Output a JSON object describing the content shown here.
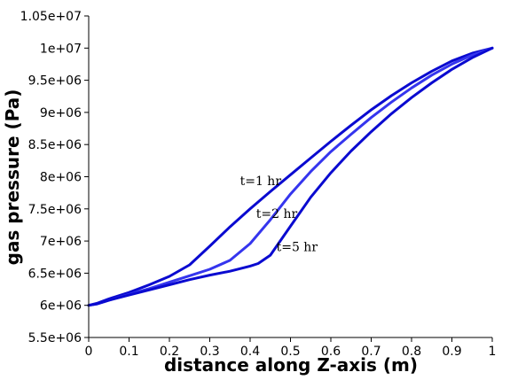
{
  "chart_data": {
    "type": "line",
    "xlabel": "distance along Z-axis (m)",
    "ylabel": "gas pressure (Pa)",
    "xlim": [
      0,
      1
    ],
    "ylim": [
      5500000,
      10500000
    ],
    "x_ticks": [
      "0",
      "0.1",
      "0.2",
      "0.3",
      "0.4",
      "0.5",
      "0.6",
      "0.7",
      "0.8",
      "0.9",
      "1"
    ],
    "y_ticks": [
      "5.5e+06",
      "6e+06",
      "6.5e+06",
      "7e+06",
      "7.5e+06",
      "8e+06",
      "8.5e+06",
      "9e+06",
      "9.5e+06",
      "1e+07",
      "1.05e+07"
    ],
    "grid": false,
    "series": [
      {
        "color": "#0a0ad0",
        "x": [
          0,
          0.02,
          0.05,
          0.1,
          0.15,
          0.2,
          0.25,
          0.3,
          0.35,
          0.4,
          0.45,
          0.5,
          0.55,
          0.6,
          0.65,
          0.7,
          0.75,
          0.8,
          0.85,
          0.9,
          0.95,
          1.0
        ],
        "y": [
          6000000,
          6030000,
          6100000,
          6200000,
          6320000,
          6450000,
          6630000,
          6920000,
          7220000,
          7500000,
          7770000,
          8030000,
          8290000,
          8550000,
          8800000,
          9040000,
          9260000,
          9460000,
          9640000,
          9800000,
          9920000,
          10000000
        ]
      },
      {
        "color": "#3535ee",
        "x": [
          0,
          0.02,
          0.05,
          0.1,
          0.15,
          0.2,
          0.25,
          0.3,
          0.35,
          0.4,
          0.45,
          0.5,
          0.55,
          0.6,
          0.65,
          0.7,
          0.75,
          0.8,
          0.85,
          0.9,
          0.95,
          1.0
        ],
        "y": [
          6000000,
          6020000,
          6080000,
          6170000,
          6260000,
          6360000,
          6460000,
          6560000,
          6700000,
          6960000,
          7330000,
          7730000,
          8080000,
          8390000,
          8660000,
          8920000,
          9160000,
          9380000,
          9580000,
          9750000,
          9890000,
          10000000
        ]
      },
      {
        "color": "#0a0ad0",
        "x": [
          0,
          0.02,
          0.05,
          0.1,
          0.15,
          0.2,
          0.25,
          0.3,
          0.35,
          0.4,
          0.42,
          0.45,
          0.5,
          0.55,
          0.6,
          0.65,
          0.7,
          0.75,
          0.8,
          0.85,
          0.9,
          0.95,
          1.0
        ],
        "y": [
          6000000,
          6020000,
          6080000,
          6160000,
          6240000,
          6320000,
          6400000,
          6470000,
          6530000,
          6610000,
          6650000,
          6780000,
          7230000,
          7680000,
          8060000,
          8400000,
          8700000,
          8980000,
          9230000,
          9460000,
          9670000,
          9850000,
          10000000
        ]
      }
    ],
    "annotations": [
      {
        "text": "t=1 hr",
        "x": 0.375,
        "y": 7870000
      },
      {
        "text": "t=2 hr",
        "x": 0.415,
        "y": 7360000
      },
      {
        "text": "t=5 hr",
        "x": 0.465,
        "y": 6840000
      }
    ]
  }
}
